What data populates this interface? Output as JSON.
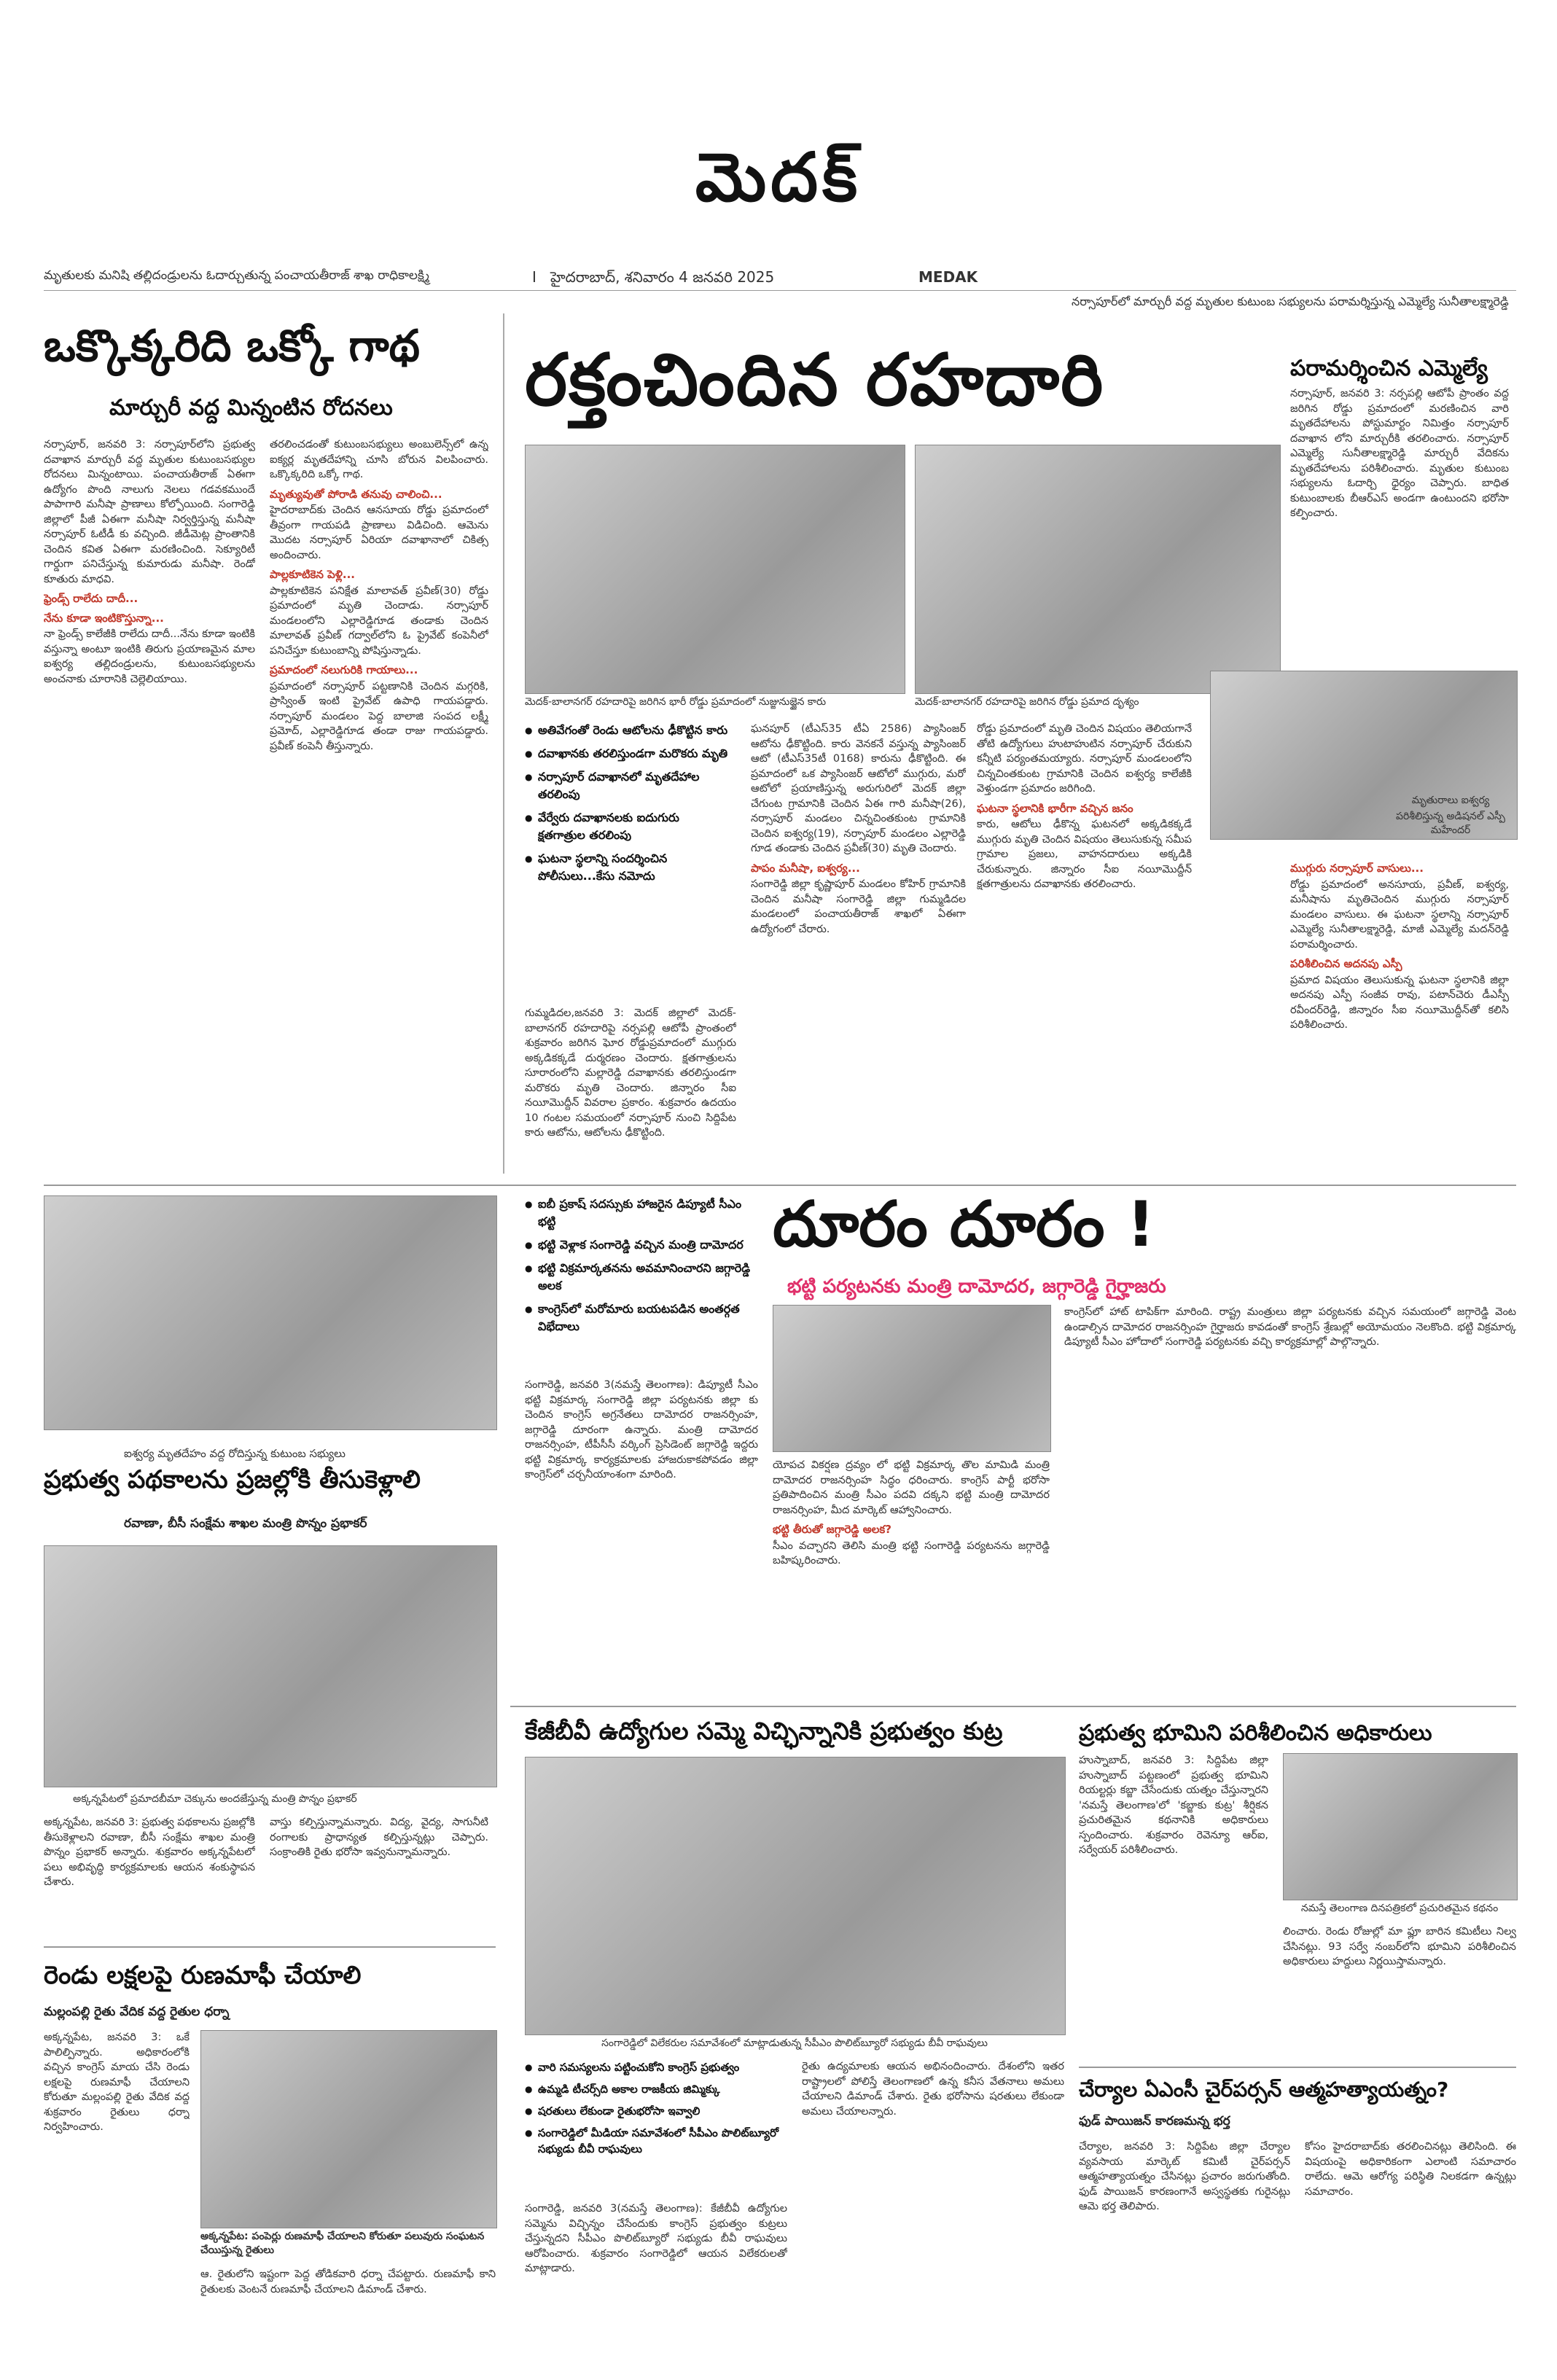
{
  "masthead": "మెదక్",
  "dateline": {
    "kicker_left": "మృతులకు మనిషి తల్లిదండ్రులను ఓదార్చుతున్న పంచాయతీరాజ్ శాఖ రాధికాలక్ష్మి",
    "page_number": "I",
    "city_date": "హైదరాబాద్, శనివారం 4 జనవరి 2025",
    "edition": "MEDAK",
    "kicker_right": "నర్సాపూర్‌లో మార్చురీ వద్ద మృతుల కుటుంబ సభ్యులను పరామర్శిస్తున్న ఎమ్మెల్యే సునీతాలక్ష్మారెడ్డి"
  },
  "story1": {
    "headline": "ఒక్కొక్కరిది ఒక్కో గాథ",
    "subhead": "మార్చురీ వద్ద మిన్నంటిన రోదనలు",
    "col1": "నర్సాపూర్, జనవరి 3: నర్సాపూర్‌లోని ప్రభుత్వ దవాఖాన మార్చురీ వద్ద మృతుల కుటుంబసభ్యుల రోదనలు మిన్నంటాయి. పంచాయతీరాజ్ ఏఈగా ఉద్యోగం పొంది నాలుగు నెలలు గడవకముందే పాపాగారి మనీషా ప్రాణాలు కోల్పోయింది. సంగారెడ్డి జిల్లాలో పీజీ ఏఈగా మనీషా నిర్వర్తిస్తున్న మనీషా నర్సాపూర్ ఓటీడీ కు వచ్చింది. జీడీమెట్ల ప్రాంతానికి చెందిన కవిత ఏఈగా మరణించింది. సెక్యూరిటీ గార్డుగా పనిచేస్తున్న కుమారుడు మనీషా. రెండో కూతురు మాధవి.",
    "col2": "తరలించడంతో కుటుంబసభ్యులు అంబులెన్స్‌లో ఉన్న ఐక్యర్ల మృతదేహాన్ని చూసి బోరున విలపించారు. ఒక్కొక్కరిది ఒక్కో గాథ.",
    "sub1": "మృత్యువుతో పోరాడి తనువు చాలించి...",
    "col2b": "హైదరాబాద్‌కు చెందిన ఆనసూయ రోడ్డు ప్రమాదంలో తీవ్రంగా గాయపడి ప్రాణాలు విడిచింది. ఆమెను మొదట నర్సాపూర్ ఏరియా దవాఖానాలో చికిత్స అందించారు.",
    "sub2": "పాల్లకూటికెన పెళ్లి...",
    "col2c": "పాల్లకూటికెన పనిక్షేత మాలావత్ ప్రవీణ్(30) రోడ్డు ప్రమాదంలో మృతి చెందాడు. నర్సాపూర్ మండలంలోని ఎల్లారెడ్డిగూడ తండాకు చెందిన మాలావత్ ప్రవీణ్ గద్వాల్‌లోని ఓ ప్రైవేట్ కంపెనీలో పనిచేస్తూ కుటుంబాన్ని పోషిస్తున్నాడు.",
    "sub3": "ఫ్రెండ్స్ రాలేదు దాదీ...",
    "sub4": "నేను కూడా ఇంటికొస్తున్నా...",
    "col1b": "నా ఫ్రెండ్స్ కాలేజీకి రాలేదు దాదీ...నేను కూడా ఇంటికి వస్తున్నా అంటూ ఇంటికి తిరుగు ప్రయాణమైన మాల ఐశ్వర్య తల్లిదండ్రులను, కుటుంబసభ్యులను అంచనాకు చూరానికి చెల్లెలియాయి.",
    "sub5": "ప్రమాదంలో నలుగురికి గాయాలు...",
    "col2d": "ప్రమాదంలో నర్సాపూర్ పట్టణానికి చెందిన మగ్గరికి, ప్రాస్వింత్ ఇంటి ప్రైవేట్ ఉపాధి గాయపడ్డారు. నర్సాపూర్ మండలం పెద్ద బాలాజి సంపద లక్ష్మీ ప్రమోద్, ఎల్లారెడ్డిగూడ తండా రాజు గాయపడ్డారు. ప్రవీణ్ కంపెనీ తీస్తున్నారు."
  },
  "story2": {
    "headline": "రక్తంచిందిన రహదారి",
    "photo1_caption": "మెదక్-బాలానగర్ రహదారిపై జరిగిన భారీ రోడ్డు ప్రమాదంలో నుజ్జునుజ్జైన కారు",
    "photo2_caption": "మెదక్-బాలానగర్ రహదారిపై జరిగిన రోడ్డు ప్రమాద దృశ్యం",
    "bullets": [
      "అతివేగంతో రెండు ఆటోలను ఢీకొట్టిన కారు",
      "దవాఖానకు తరలిస్తుండగా మరొకరు మృతి",
      "నర్సాపూర్ దవాఖానలో మృతదేహాల తరలింపు",
      "వేర్వేరు దవాఖానలకు ఐదుగురు క్షతగాత్రుల తరలింపు",
      "ఘటనా స్థలాన్ని సందర్శించిన పోలీసులు...కేసు నమోదు"
    ],
    "col1": "గుమ్మడిదల,జనవరి 3: మెదక్ జిల్లాలో మెదక్-బాలానగర్ రహదారిపై నర్సపల్లి ఆటోపీ ప్రాంతంలో శుక్రవారం జరిగిన ఘోర రోడ్డుప్రమాదంలో ముగ్గురు అక్కడికక్కడే దుర్మరణం చెందారు. క్షతగాత్రులను సూరారంలోని మల్లారెడ్డి దవాఖానకు తరలిస్తుండగా మరొకరు మృతి చెందారు. జిన్నారం సీఐ నయీమొద్దీన్ వివరాల ప్రకారం. శుక్రవారం ఉదయం 10 గంటల సమయంలో నర్సాపూర్ నుంచి సిద్దిపేట కారు ఆటోను, ఆటోలను ఢీకొట్టింది.",
    "col2": "ఘనపూర్ (టీఎస్35 టీఏ 2586) ప్యాసింజర్ ఆటోను ఢీకొట్టింది. కారు వెనకనే వస్తున్న ప్యాసింజర్ ఆటో (టీఎస్35టీ 0168) కారును ఢీకొట్టింది. ఈ ప్రమాదంలో ఒక ప్యాసింజర్ ఆటోలో ముగ్గురు, మరో ఆటోలో ప్రయాణిస్తున్న అరుగురిలో మెదక్ జిల్లా చేగుంట గ్రామానికి చెందిన ఏఈ గారి మనీషా(26), నర్సాపూర్ మండలం చిన్నచింతకుంట గ్రామానికి చెందిన ఐశ్వర్య(19), నర్సాపూర్ మండలం ఎల్లారెడ్డి గూడ తండాకు చెందిన ప్రవీణ్(30) మృతి చెందారు.",
    "sub1": "పాపం మనీషా, ఐశ్వర్య...",
    "col2b": "సంగారెడ్డి జిల్లా కృష్ణాపూర్ మండలం కోహిర్ గ్రామానికి చెందిన మనీషా సంగారెడ్డి జిల్లా గుమ్మడిదల మండలంలో పంచాయతీరాజ్ శాఖలో ఏఈగా ఉద్యోగంలో చేరారు.",
    "col3": "రోడ్డు ప్రమాదంలో మృతి చెందిన విషయం తెలియగానే తోటి ఉద్యోగులు హుటాహుటిన నర్సాపూర్ చేరుకుని కన్నీటి పర్యంతమయ్యారు. నర్సాపూర్ మండలంలోని చిన్నచింతకుంట గ్రామానికి చెందిన ఐశ్వర్య కాలేజీకి వెళ్తుండగా ప్రమాదం జరిగింది.",
    "sub2": "ఘటనా స్థలానికి భారీగా వచ్చిన జనం",
    "col3b": "కారు, ఆటోలు ఢీకొన్న ఘటనలో అక్కడికక్కడే ముగ్గురు మృతి చెందిన విషయం తెలుసుకున్న సమీప గ్రామాల ప్రజలు, వాహనదారులు అక్కడికి చేరుకున్నారు. జిన్నారం సీఐ నయీమొద్దీన్ క్షతగాత్రులను దవాఖానకు తరలించారు.",
    "photo3_caption": "మృతురాలు ఐశ్వర్య",
    "photo3_caption2": "పరిశీలిస్తున్న అడిషనల్ ఎస్పీ మహేందర్",
    "sub3": "ముగ్గురు నర్సాపూర్ వాసులు...",
    "col4": "రోడ్డు ప్రమాదంలో అనసూయ, ప్రవీణ్, ఐశ్వర్య, మనీషాను మృతిచెందిన ముగ్గురు నర్సాపూర్ మండలం వాసులు. ఈ ఘటనా స్థలాన్ని నర్సాపూర్ ఎమ్మెల్యే సునీతాలక్ష్మారెడ్డి, మాజీ ఎమ్మెల్యే మదన్‌రెడ్డి పరామర్శించారు.",
    "sub4": "పరిశీలించిన అదనపు ఎస్పీ",
    "col4b": "ప్రమాద విషయం తెలుసుకున్న ఘటనా స్థలానికి జిల్లా అదనపు ఎస్పీ సంజీవ రావు, పటాన్‌చెరు డీఎస్పీ రవీందర్‌రెడ్డి, జిన్నారం సీఐ నయీమొద్దీన్‌తో కలిసి పరిశీలించారు."
  },
  "story3": {
    "headline": "పరామర్శించిన ఎమ్మెల్యే",
    "body": "నర్సాపూర్, జనవరి 3: నర్సపల్లి ఆటోపీ ప్రాంతం వద్ద జరిగిన రోడ్డు ప్రమాదంలో మరణించిన వారి మృతదేహాలను పోస్టుమార్టం నిమిత్తం నర్సాపూర్ దవాఖాన లోని మార్చురీకి తరలించారు. నర్సాపూర్ ఎమ్మెల్యే సునీతాలక్ష్మారెడ్డి మార్చురీ వేదికను మృతదేహాలను పరిశీలించారు. మృతుల కుటుంబ సభ్యులను ఓదార్చి ధైర్యం చెప్పారు. బాధిత కుటుంబాలకు బీఆర్ఎస్ అండగా ఉంటుందని భరోసా కల్పించారు."
  },
  "story4": {
    "headline": "దూరం దూరం !",
    "subhead": "భట్టి పర్యటనకు మంత్రి దామోదర, జగ్గారెడ్డి గైర్హాజరు",
    "bullets": [
      "ఐబీ ప్రకాష్ సదస్సుకు హాజరైన డిప్యూటీ సీఎం భట్టి",
      "భట్టి వెళ్లాక సంగారెడ్డి వచ్చిన మంత్రి దామోదర",
      "భట్టి విక్రమార్కతనను అవమానించారని జగ్గారెడ్డి అలక",
      "కాంగ్రెస్‌లో మరోమారు బయటపడిన అంతర్గత విభేదాలు"
    ],
    "col1": "సంగారెడ్డి, జనవరి 3(నమస్తే తెలంగాణ): డిప్యూటీ సీఎం భట్టి విక్రమార్క సంగారెడ్డి జిల్లా పర్యటనకు జిల్లా కు చెందిన కాంగ్రెస్ అగ్రనేతలు దామోదర రాజనర్సింహ, జగ్గారెడ్డి దూరంగా ఉన్నారు. మంత్రి దామోదర రాజనర్సింహ, టీపీసీసీ వర్కింగ్ ప్రెసిడెంట్ జగ్గారెడ్డి ఇద్దరు భట్టి విక్రమార్క కార్యక్రమాలకు హాజరుకాకపోవడం జిల్లా కాంగ్రెస్‌లో చర్చనీయాంశంగా మారింది.",
    "col2": "యోపచ వికర్షణ ద్రవ్యం లో భట్టి విక్రమార్క తొల మామిడి మంత్రి దామోదర రాజనర్సింహ సిద్ధం ధరించారు. కాంగ్రెస్ పార్టీ భరోసా ప్రతిపాదించిన మంత్రి సీఎం పదవి దక్కని భట్టి మంత్రి దామోదర రాజనర్సింహ, మీద మార్కెట్ ఆహ్వానించారు.",
    "sub1": "భట్టి తీరుతో జగ్గారెడ్డి అలక?",
    "col2b": "సీఎం వచ్చారని తెలిసి మంత్రి భట్టి సంగారెడ్డి పర్యటనను జగ్గారెడ్డి బహిష్కరించారు.",
    "col3": "కాంగ్రెస్‌లో హాట్ టాపిక్‌గా మారింది. రాష్ట్ర మంత్రులు జిల్లా పర్యటనకు వచ్చిన సమయంలో జగ్గారెడ్డి వెంట ఉండాల్సిన దామోదర రాజనర్సింహ గైర్హాజరు కావడంతో కాంగ్రెస్ శ్రేణుల్లో అయోమయం నెలకొంది. భట్టి విక్రమార్క డిప్యూటీ సీఎం హోదాలో సంగారెడ్డి పర్యటనకు వచ్చి కార్యక్రమాల్లో పాల్గొన్నారు."
  },
  "story5": {
    "kicker": "ఐశ్వర్య మృతదేహం వద్ద రోదిస్తున్న కుటుంబ సభ్యులు",
    "headline": "ప్రభుత్వ పథకాలను ప్రజల్లోకి తీసుకెళ్లాలి",
    "subhead": "రవాణా, బీసీ సంక్షేమ శాఖల మంత్రి పొన్నం ప్రభాకర్"
  },
  "story6": {
    "headline": "కేజీబీవీ ఉద్యోగుల సమ్మె విచ్ఛిన్నానికి ప్రభుత్వం కుట్ర",
    "kicker": "సంగారెడ్డిలో విలేకరుల సమావేశంలో మాట్లాడుతున్న సీపీఎం పొలిట్‌బ్యూరో సభ్యుడు బీవీ రాఘవులు",
    "bullets": [
      "వారి సమస్యలను పట్టించుకోని కాంగ్రెస్ ప్రభుత్వం",
      "ఉమ్మడి టీచర్స్‌ది అకాల రాజకీయ జిమ్మిక్కు",
      "షరతులు లేకుండా రైతుభరోసా ఇవ్వాలి",
      "సంగారెడ్డిలో మీడియా సమావేశంలో సీపీఎం పొలిట్‌బ్యూరో సభ్యుడు బీవీ రాఘవులు"
    ],
    "col1": "సంగారెడ్డి, జనవరి 3(నమస్తే తెలంగాణ): కేజీబీవీ ఉద్యోగుల సమ్మెను విచ్ఛిన్నం చేసేందుకు కాంగ్రెస్ ప్రభుత్వం కుట్రలు చేస్తున్నదని సీపీఎం పొలిట్‌బ్యూరో సభ్యుడు బీవీ రాఘవులు ఆరోపించారు. శుక్రవారం సంగారెడ్డిలో ఆయన విలేకరులతో మాట్లాడారు.",
    "col2": "రైతు ఉద్యమాలకు ఆయన అభినందించారు. దేశంలోని ఇతర రాష్ట్రాలలో పోలిస్తే తెలంగాణలో ఉన్న కనీస వేతనాలు అమలు చేయాలని డిమాండ్ చేశారు. రైతు భరోసాను షరతులు లేకుండా అమలు చేయాలన్నారు."
  },
  "story7": {
    "kicker": "అక్కన్నపేటలో ప్రమాదబీమా చెక్కును అందజేస్తున్న మంత్రి పొన్నం ప్రభాకర్",
    "body": "అక్కన్నపేట, జనవరి 3: ప్రభుత్వ పథకాలను ప్రజల్లోకి తీసుకెళ్లాలని రవాణా, బీసీ సంక్షేమ శాఖల మంత్రి పొన్నం ప్రభాకర్ అన్నారు. శుక్రవారం అక్కన్నపేటలో పలు అభివృద్ధి కార్యక్రమాలకు ఆయన శంకుస్థాపన చేశారు.",
    "col2": "వాస్తు కల్పిస్తున్నామన్నారు. విద్య, వైద్య, సాగునీటి రంగాలకు ప్రాధాన్యత కల్పిస్తున్నట్లు చెప్పారు. సంక్రాంతికి రైతు భరోసా ఇవ్వనున్నామన్నారు."
  },
  "story8": {
    "headline": "రెండు లక్షలపై రుణమాఫీ చేయాలి",
    "subhead": "మల్లంపల్లి రైతు వేదిక వద్ద రైతుల ధర్నా",
    "col1": "అక్కన్నపేట, జనవరి 3: ఒకే పాలిల్పిన్నారు. అధికారంలోకి వచ్చిన కాంగ్రెస్ మాయ చేసి రెండు లక్షలపై రుణమాఫీ చేయాలని కోరుతూ మల్లంపల్లి రైతు వేదిక వద్ద శుక్రవారం రైతులు ధర్నా నిర్వహించారు.",
    "kicker2": "అక్కన్నపేట: పంపెర్లు రుణమాఫీ చేయాలని కోరుతూ పలువురు సంఘటన చేయిస్తున్న రైతులు",
    "col2": "ఆ. రైతులోని ఇష్టంగా పెద్ద తోడికవారి ధర్నా చేపట్టారు. రుణమాఫీ కాని రైతులకు వెంటనే రుణమాఫీ చేయాలని డిమాండ్ చేశారు."
  },
  "story9": {
    "headline": "ప్రభుత్వ భూమిని పరిశీలించిన అధికారులు",
    "body": "హుస్నాబాద్, జనవరి 3: సిద్దిపేట జిల్లా హుస్నాబాద్ పట్టణంలో ప్రభుత్వ భూమిని రియల్టర్లు కబ్జా చేసేందుకు యత్నం చేస్తున్నారని 'నమస్తే తెలంగాణ'లో 'కబ్జాకు కుట్ర' శీర్షికన ప్రచురితమైన కథనానికి అధికారులు స్పందించారు. శుక్రవారం రెవెన్యూ ఆర్ఐ, సర్వేయర్ పరిశీలించారు.",
    "kicker": "నమస్తే తెలంగాణ దినపత్రికలో ప్రచురితమైన కథనం",
    "col2": "లించారు. రెండు రోజుల్లో మా ఫ్లూ బారిన కమిటీలు నిల్వ చేసినట్లు. 93 సర్వే నంబర్‌లోని భూమిని పరిశీలించిన అధికారులు హద్దులు నిర్ణయిస్తామన్నారు."
  },
  "story10": {
    "headline": "చేర్యాల ఏఎంసీ చైర్‌పర్సన్ ఆత్మహత్యాయత్నం?",
    "subhead": "ఫుడ్ పాయిజన్ కారణమన్న భర్త",
    "col1": "చేర్యాల, జనవరి 3: సిద్దిపేట జిల్లా చేర్యాల వ్యవసాయ మార్కెట్ కమిటీ చైర్‌పర్సన్ ఆత్మహత్యాయత్నం చేసినట్లు ప్రచారం జరుగుతోంది. ఫుడ్ పాయిజన్ కారణంగానే అస్వస్థతకు గురైనట్లు ఆమె భర్త తెలిపారు.",
    "col2": "కోసం హైదరాబాద్‌కు తరలించినట్లు తెలిసింది. ఈ విషయంపై అధికారికంగా ఎలాంటి సమాచారం రాలేదు. ఆమె ఆరోగ్య పరిస్థితి నిలకడగా ఉన్నట్లు సమాచారం."
  }
}
